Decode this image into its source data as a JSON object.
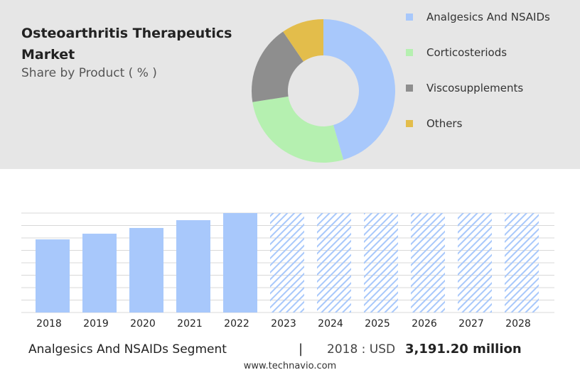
{
  "chart_data": [
    {
      "type": "pie",
      "title": "Osteoarthritis Therapeutics Market",
      "subtitle": "Share by Product ( % )",
      "categories": [
        "Analgesics And NSAIDs",
        "Corticosteriods",
        "Viscosupplements",
        "Others"
      ],
      "values": [
        45.5,
        27,
        18,
        9.5
      ],
      "colors": [
        "#a8c8fb",
        "#b5f0b0",
        "#8e8e8e",
        "#e3bd4b"
      ],
      "legend": "right"
    },
    {
      "type": "bar",
      "categories": [
        "2018",
        "2019",
        "2020",
        "2021",
        "2022",
        "2023",
        "2024",
        "2025",
        "2026",
        "2027",
        "2028"
      ],
      "values": [
        3191.2,
        3440,
        3690,
        4030,
        4340,
        null,
        null,
        null,
        null,
        null,
        null
      ],
      "color": "#a8c8fb",
      "ylim": [
        0,
        4340
      ]
    }
  ],
  "footer": {
    "segment": "Analgesics And NSAIDs Segment",
    "separator": "|",
    "year_label": "2018 : USD",
    "value_label": "3,191.20 million",
    "source": "www.technavio.com"
  }
}
